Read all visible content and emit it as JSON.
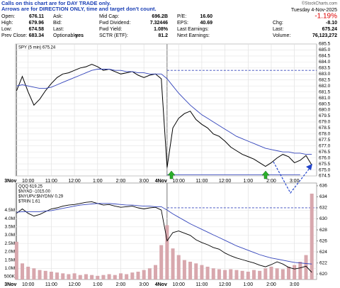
{
  "notes": [
    "Calls on this chart are for DAY TRADE only.",
    "Arrows are for DIRECTION ONLY, time and target don't count."
  ],
  "header": {
    "rows": [
      [
        [
          "Open:",
          "676.11"
        ],
        [
          "Ask:"
        ],
        [
          "Mid Cap:",
          "696.2B"
        ],
        [
          "P/E:",
          "16.60"
        ]
      ],
      [
        [
          "High:",
          "679.96"
        ],
        [
          "Bid:"
        ],
        [
          "Fwd Dividend:",
          "7.32446"
        ],
        [
          "EPS:",
          "40.69"
        ]
      ],
      [
        [
          "Low:",
          "674.58"
        ],
        [
          "Last:"
        ],
        [
          "Fwd Yield:",
          "1.08%"
        ],
        [
          "Last Earnings:"
        ]
      ],
      [
        [
          "Prev Close:",
          "683.34"
        ],
        [
          "Optionable:",
          "yes"
        ],
        [
          "SCTR (ETF):",
          "81.2"
        ],
        [
          "Next Earnings:"
        ]
      ]
    ],
    "copyright": "©StockCharts.com",
    "date": "Tuesday 4-Nov-2025",
    "change_pct": "-1.19%",
    "stats": [
      [
        "Chg:",
        "-8.10"
      ],
      [
        "Last:",
        "675.24"
      ],
      [
        "Volume:",
        "76,123,272"
      ]
    ]
  },
  "chart_data": [
    {
      "type": "line",
      "legend": [
        "SPY (5 min) 675.24"
      ],
      "x": [
        0,
        3,
        6,
        9,
        12,
        15,
        18,
        21,
        24,
        27,
        30,
        33,
        36,
        39,
        42,
        45,
        48,
        51,
        54,
        57,
        60,
        63,
        66,
        69,
        72,
        75,
        78,
        81,
        84,
        87,
        90,
        93,
        96,
        99,
        102,
        105,
        108,
        111,
        114,
        117,
        120,
        123,
        126,
        129,
        132,
        135,
        138,
        141,
        144,
        147,
        150,
        153
      ],
      "series": [
        {
          "color": "#000000",
          "values": [
            681.6,
            682.8,
            681.5,
            680.4,
            680.9,
            681.6,
            682.2,
            682.7,
            683.0,
            683.1,
            683.3,
            683.5,
            683.6,
            683.8,
            683.6,
            683.3,
            683.4,
            683.2,
            683.0,
            683.1,
            683.2,
            682.9,
            682.7,
            682.9,
            683.0,
            682.6,
            675.2,
            678.5,
            679.3,
            679.7,
            679.9,
            679.2,
            678.8,
            678.5,
            678.0,
            677.8,
            677.4,
            676.9,
            676.6,
            676.3,
            676.1,
            675.9,
            675.6,
            675.3,
            675.6,
            676.0,
            676.3,
            676.1,
            675.6,
            675.8,
            676.2,
            675.4
          ]
        },
        {
          "color": "#3344bb",
          "values": [
            682.0,
            682.1,
            682.0,
            681.9,
            681.8,
            681.8,
            681.9,
            682.1,
            682.3,
            682.5,
            682.7,
            682.9,
            683.1,
            683.3,
            683.4,
            683.4,
            683.4,
            683.3,
            683.3,
            683.2,
            683.2,
            683.1,
            683.1,
            683.0,
            683.0,
            683.0,
            682.6,
            682.0,
            681.4,
            680.9,
            680.4,
            680.0,
            679.6,
            679.3,
            679.0,
            678.7,
            678.4,
            678.1,
            677.8,
            677.6,
            677.4,
            677.2,
            677.0,
            676.8,
            676.7,
            676.6,
            676.5,
            676.5,
            676.4,
            676.4,
            676.3,
            676.3
          ]
        }
      ],
      "hlines": [
        {
          "value": 683.3,
          "color": "#3344bb",
          "dash": true
        },
        {
          "value": 674.6,
          "color": "#3344bb",
          "dash": false
        }
      ],
      "xlim": [
        0,
        156
      ],
      "xticks": [
        {
          "value": 0,
          "label": "3Nov"
        },
        {
          "value": 6,
          "label": "10:00"
        },
        {
          "value": 18,
          "label": "11:00"
        },
        {
          "value": 30,
          "label": "12:00"
        },
        {
          "value": 42,
          "label": "1:00"
        },
        {
          "value": 54,
          "label": "2:00"
        },
        {
          "value": 66,
          "label": "3:00"
        },
        {
          "value": 78,
          "label": "4Nov"
        },
        {
          "value": 84,
          "label": "10:00"
        },
        {
          "value": 96,
          "label": "11:00"
        },
        {
          "value": 108,
          "label": "12:00"
        },
        {
          "value": 120,
          "label": "1:00"
        },
        {
          "value": 132,
          "label": "2:00"
        },
        {
          "value": 144,
          "label": "3:00"
        }
      ],
      "ylim": [
        674.5,
        685.5
      ],
      "yticks": [
        674.5,
        {
          "value": 675,
          "label": "675.0"
        },
        675.5,
        {
          "value": 676,
          "label": "676.0"
        },
        676.5,
        {
          "value": 677,
          "label": "677.0"
        },
        677.5,
        {
          "value": 678,
          "label": "678.0"
        },
        678.5,
        {
          "value": 679,
          "label": "679.0"
        },
        679.5,
        {
          "value": 680,
          "label": "680.0"
        },
        680.5,
        {
          "value": 681,
          "label": "681.0"
        },
        681.5,
        {
          "value": 682,
          "label": "682.0"
        },
        682.5,
        {
          "value": 683,
          "label": "683.0"
        },
        683.5,
        {
          "value": 684,
          "label": "684.0"
        },
        684.5,
        {
          "value": 685,
          "label": "685.0"
        },
        685.5
      ],
      "grid": true
    },
    {
      "type": "bar",
      "legend": [
        "QQQ 619.25",
        "$NYAD -1015.00",
        "$NYUPV:$NYDNV 0.29",
        "$TRIN 1.61"
      ],
      "x": [
        0,
        3,
        6,
        9,
        12,
        15,
        18,
        21,
        24,
        27,
        30,
        33,
        36,
        39,
        42,
        45,
        48,
        51,
        54,
        57,
        60,
        63,
        66,
        69,
        72,
        75,
        78,
        81,
        84,
        87,
        90,
        93,
        96,
        99,
        102,
        105,
        108,
        111,
        114,
        117,
        120,
        123,
        126,
        129,
        132,
        135,
        138,
        141,
        144,
        147,
        150,
        153
      ],
      "series": [
        {
          "color": "#d8a7ad",
          "values": [
            2600000,
            1300000,
            1100000,
            1000000,
            900000,
            850000,
            800000,
            750000,
            700000,
            650000,
            700000,
            600000,
            650000,
            600000,
            550000,
            600000,
            650000,
            600000,
            700000,
            650000,
            750000,
            800000,
            900000,
            1000000,
            1200000,
            2400000,
            3600000,
            2200000,
            1800000,
            1500000,
            1400000,
            1300000,
            1200000,
            1100000,
            1000000,
            950000,
            900000,
            950000,
            900000,
            850000,
            800000,
            900000,
            850000,
            1000000,
            1100000,
            1000000,
            950000,
            1100000,
            1200000,
            1400000,
            1800000,
            5500000
          ]
        },
        {
          "axis": "y2",
          "color": "#000000",
          "values": [
            631.0,
            631.8,
            631.0,
            630.5,
            630.8,
            631.3,
            631.8,
            632.0,
            632.3,
            632.5,
            632.6,
            632.8,
            633.0,
            633.1,
            632.8,
            632.5,
            632.6,
            632.3,
            632.1,
            632.2,
            632.3,
            632.0,
            631.8,
            632.0,
            632.1,
            631.6,
            626.0,
            627.5,
            627.8,
            627.4,
            627.0,
            626.2,
            625.7,
            625.3,
            624.8,
            624.5,
            623.8,
            623.3,
            622.9,
            622.6,
            622.3,
            622.0,
            621.6,
            621.3,
            621.7,
            622.2,
            621.8,
            621.2,
            620.9,
            621.1,
            621.4,
            620.3
          ]
        },
        {
          "axis": "y2",
          "color": "#3344bb",
          "values": [
            631.2,
            631.3,
            631.3,
            631.3,
            631.3,
            631.4,
            631.5,
            631.7,
            631.9,
            632.1,
            632.3,
            632.5,
            632.6,
            632.7,
            632.8,
            632.8,
            632.8,
            632.7,
            632.6,
            632.5,
            632.5,
            632.4,
            632.3,
            632.3,
            632.2,
            632.2,
            631.6,
            630.9,
            630.3,
            629.7,
            629.1,
            628.6,
            628.1,
            627.6,
            627.1,
            626.6,
            626.1,
            625.6,
            625.1,
            624.7,
            624.3,
            623.9,
            623.5,
            623.2,
            622.9,
            622.7,
            622.5,
            622.3,
            622.1,
            622.0,
            621.9,
            621.8
          ]
        }
      ],
      "hlines": [
        {
          "value": 632,
          "color": "#3344bb",
          "dash": true,
          "axis": "y2"
        }
      ],
      "xlim": [
        0,
        156
      ],
      "xticks": [
        {
          "value": 0,
          "label": "3Nov"
        },
        {
          "value": 6,
          "label": "10:00"
        },
        {
          "value": 18,
          "label": "11:00"
        },
        {
          "value": 30,
          "label": "12:00"
        },
        {
          "value": 42,
          "label": "1:00"
        },
        {
          "value": 54,
          "label": "2:00"
        },
        {
          "value": 66,
          "label": "3:00"
        },
        {
          "value": 78,
          "label": "4Nov"
        },
        {
          "value": 84,
          "label": "10:00"
        },
        {
          "value": 96,
          "label": "11:00"
        },
        {
          "value": 108,
          "label": "12:00"
        },
        {
          "value": 120,
          "label": "1:00"
        },
        {
          "value": 132,
          "label": "2:00"
        },
        {
          "value": 144,
          "label": "3:00"
        }
      ],
      "ylim": [
        330000,
        6140000
      ],
      "yticks": [
        {
          "value": 500000,
          "label": "500K"
        },
        {
          "value": 1000000,
          "label": "1.0M"
        },
        {
          "value": 1500000,
          "label": "1.5M"
        },
        {
          "value": 2000000,
          "label": "2.0M"
        },
        {
          "value": 2500000,
          "label": "2.5M"
        },
        {
          "value": 3000000,
          "label": "3.0M"
        },
        {
          "value": 3500000,
          "label": "3.5M"
        },
        {
          "value": 4000000,
          "label": "4.0M"
        },
        {
          "value": 4500000,
          "label": "4.5M"
        }
      ],
      "y2lim": [
        619,
        636.5
      ],
      "y2ticks": [
        620,
        622,
        624,
        626,
        628,
        630,
        632,
        634,
        636
      ],
      "grid": true
    }
  ]
}
